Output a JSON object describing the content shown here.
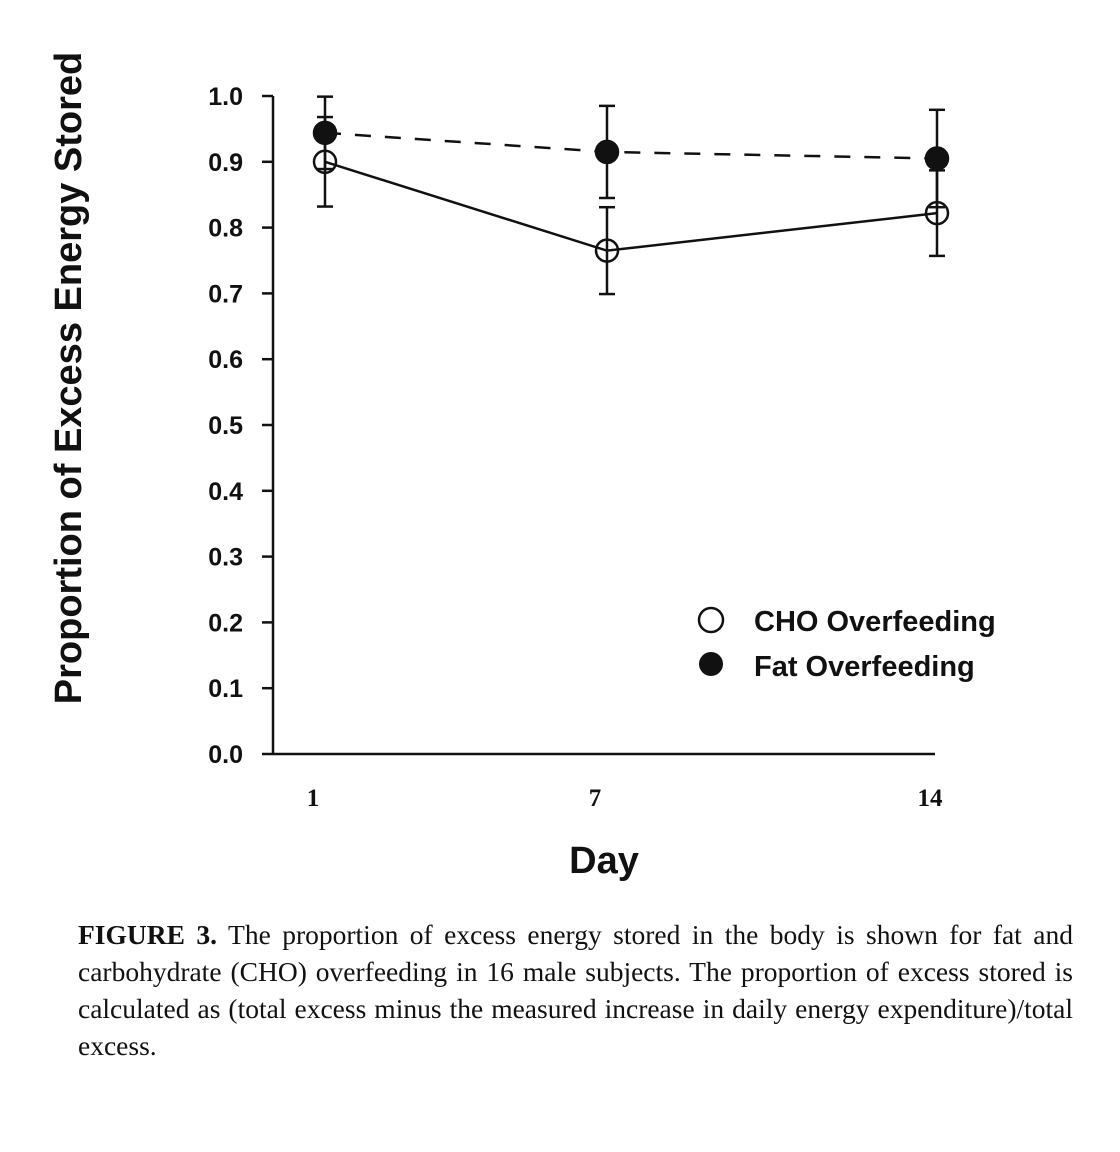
{
  "chart_data": {
    "type": "line",
    "xlabel": "Day",
    "ylabel": "Proportion of Excess Energy Stored",
    "categories": [
      "1",
      "7",
      "14"
    ],
    "x": [
      1,
      7,
      14
    ],
    "ylim": [
      0.0,
      1.0
    ],
    "yticks": [
      "0.0",
      "0.1",
      "0.2",
      "0.3",
      "0.4",
      "0.5",
      "0.6",
      "0.7",
      "0.8",
      "0.9",
      "1.0"
    ],
    "grid": false,
    "legend_position": "bottom-right",
    "series": [
      {
        "name": "CHO Overfeeding",
        "marker": "open-circle",
        "line": "solid",
        "values": [
          0.9,
          0.765,
          0.822
        ],
        "error": [
          0.068,
          0.066,
          0.065
        ]
      },
      {
        "name": "Fat Overfeeding",
        "marker": "filled-circle",
        "line": "dashed",
        "values": [
          0.944,
          0.915,
          0.905
        ],
        "error": [
          0.055,
          0.07,
          0.074
        ]
      }
    ]
  },
  "caption": {
    "label": "FIGURE 3.",
    "text": "The proportion of excess energy stored in the body is shown for fat and carbohydrate (CHO) overfeeding in 16 male subjects. The proportion of excess stored is calculated as (total excess minus the measured increase in daily energy expenditure)/total excess."
  }
}
